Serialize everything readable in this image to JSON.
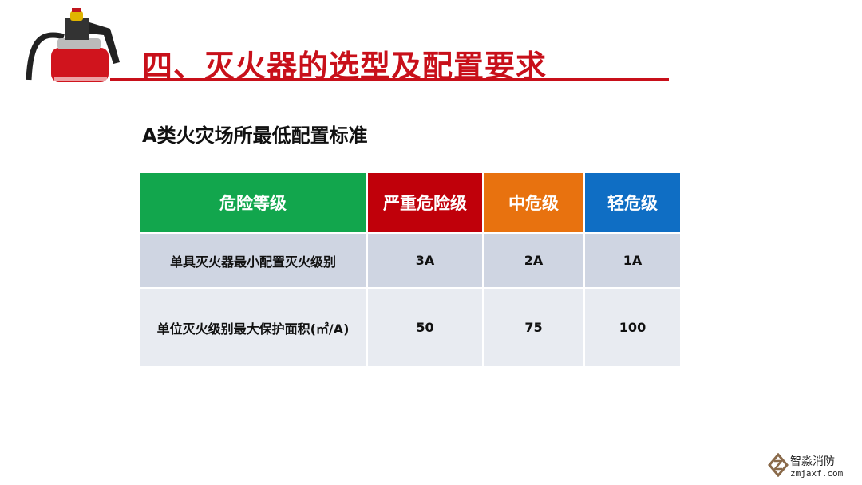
{
  "slide": {
    "title": "四、灭火器的选型及配置要求",
    "subtitle": "A类火灾场所最低配置标准"
  },
  "table": {
    "header": [
      {
        "label": "危险等级",
        "color": "#12a64d"
      },
      {
        "label": "严重危险级",
        "color": "#c0000a"
      },
      {
        "label": "中危级",
        "color": "#e8720f"
      },
      {
        "label": "轻危级",
        "color": "#0f6ec4"
      }
    ],
    "rows": [
      [
        "单具灭火器最小配置灭火级别",
        "3A",
        "2A",
        "1A"
      ],
      [
        "单位灭火级别最大保护面积(㎡/A)",
        "50",
        "75",
        "100"
      ]
    ]
  },
  "watermark": {
    "name": "智淼消防",
    "url": "zmjaxf.com"
  }
}
